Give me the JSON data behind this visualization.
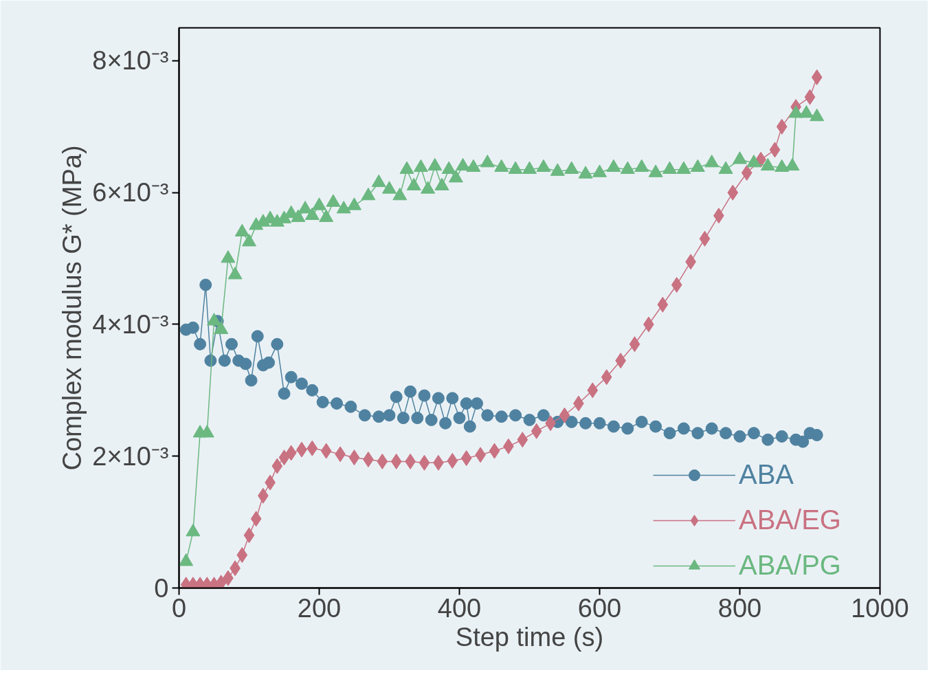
{
  "chart_data": {
    "type": "line",
    "xlabel": "Step time (s)",
    "ylabel": "Complex modulus G* (MPa)",
    "xlim": [
      0,
      1000
    ],
    "xticks": [
      0,
      200,
      400,
      600,
      800,
      1000
    ],
    "ylim": [
      0,
      0.0085
    ],
    "yticks": [
      0,
      {
        "value": 0.002,
        "label": "2×10⁻³"
      },
      {
        "value": 0.004,
        "label": "4×10⁻³"
      },
      {
        "value": 0.006,
        "label": "6×10⁻³"
      },
      {
        "value": 0.008,
        "label": "8×10⁻³"
      }
    ],
    "grid": false,
    "legend": "bottom right",
    "line_style": "solid",
    "series": [
      {
        "name": "ABA",
        "color": "#4f82a0",
        "marker": "circle",
        "x": [
          10,
          20,
          30,
          38,
          45,
          55,
          65,
          75,
          85,
          95,
          103,
          112,
          120,
          128,
          140,
          150,
          160,
          175,
          190,
          205,
          225,
          245,
          265,
          285,
          300,
          310,
          320,
          330,
          340,
          350,
          360,
          370,
          380,
          390,
          400,
          410,
          415,
          425,
          440,
          460,
          480,
          500,
          520,
          540,
          560,
          580,
          600,
          620,
          640,
          660,
          680,
          700,
          720,
          740,
          760,
          780,
          800,
          820,
          840,
          860,
          880,
          890,
          900,
          910
        ],
        "values": [
          0.00392,
          0.00395,
          0.0037,
          0.0046,
          0.00345,
          0.00405,
          0.00345,
          0.0037,
          0.00345,
          0.0034,
          0.00315,
          0.00382,
          0.00338,
          0.00342,
          0.0037,
          0.00295,
          0.0032,
          0.0031,
          0.003,
          0.00282,
          0.0028,
          0.00275,
          0.00262,
          0.0026,
          0.00262,
          0.0029,
          0.00258,
          0.00298,
          0.00258,
          0.00292,
          0.00255,
          0.00288,
          0.0025,
          0.00288,
          0.00258,
          0.0028,
          0.00245,
          0.0028,
          0.00262,
          0.0026,
          0.00262,
          0.00255,
          0.00262,
          0.00252,
          0.00252,
          0.0025,
          0.0025,
          0.00245,
          0.00242,
          0.00252,
          0.00245,
          0.00235,
          0.00242,
          0.00235,
          0.00242,
          0.00235,
          0.0023,
          0.00235,
          0.00225,
          0.0023,
          0.00225,
          0.00222,
          0.00235,
          0.00232
        ]
      },
      {
        "name": "ABA/EG",
        "color": "#c97282",
        "marker": "diamond",
        "x": [
          10,
          20,
          30,
          40,
          50,
          60,
          70,
          80,
          90,
          100,
          110,
          120,
          130,
          140,
          150,
          160,
          175,
          190,
          210,
          230,
          250,
          270,
          290,
          310,
          330,
          350,
          370,
          390,
          410,
          430,
          450,
          470,
          490,
          510,
          530,
          550,
          570,
          590,
          610,
          630,
          650,
          670,
          690,
          710,
          730,
          750,
          770,
          790,
          810,
          830,
          850,
          860,
          880,
          900,
          910
        ],
        "values": [
          5e-05,
          5e-05,
          5e-05,
          5e-05,
          5e-05,
          8e-05,
          0.00015,
          0.0003,
          0.0005,
          0.0008,
          0.00105,
          0.0014,
          0.0016,
          0.00185,
          0.00198,
          0.00205,
          0.0021,
          0.00212,
          0.00208,
          0.00203,
          0.00198,
          0.00195,
          0.00192,
          0.00192,
          0.00192,
          0.0019,
          0.0019,
          0.00193,
          0.00197,
          0.00202,
          0.00208,
          0.00215,
          0.00225,
          0.00238,
          0.0025,
          0.00262,
          0.0028,
          0.003,
          0.0032,
          0.00345,
          0.0037,
          0.004,
          0.0043,
          0.0046,
          0.00495,
          0.0053,
          0.00565,
          0.006,
          0.0063,
          0.0065,
          0.00665,
          0.007,
          0.0073,
          0.00745,
          0.00775
        ]
      },
      {
        "name": "ABA/PG",
        "color": "#6bb880",
        "marker": "triangle",
        "x": [
          10,
          20,
          30,
          40,
          50,
          60,
          70,
          80,
          90,
          100,
          110,
          120,
          130,
          140,
          150,
          160,
          170,
          180,
          190,
          200,
          210,
          220,
          235,
          250,
          270,
          285,
          300,
          315,
          325,
          335,
          345,
          355,
          365,
          375,
          385,
          395,
          405,
          420,
          440,
          460,
          480,
          500,
          520,
          540,
          560,
          580,
          600,
          620,
          640,
          660,
          680,
          700,
          720,
          740,
          760,
          780,
          800,
          820,
          840,
          860,
          875,
          880,
          895,
          910
        ],
        "values": [
          0.0004,
          0.00085,
          0.00235,
          0.00235,
          0.00405,
          0.00392,
          0.005,
          0.00475,
          0.0054,
          0.00525,
          0.0055,
          0.00555,
          0.0056,
          0.00555,
          0.0056,
          0.00568,
          0.00562,
          0.00575,
          0.00565,
          0.0058,
          0.00562,
          0.00585,
          0.00575,
          0.0058,
          0.00595,
          0.00615,
          0.00605,
          0.00595,
          0.00635,
          0.0061,
          0.00638,
          0.00605,
          0.0064,
          0.0061,
          0.00635,
          0.00622,
          0.0064,
          0.00638,
          0.00645,
          0.00638,
          0.00635,
          0.00635,
          0.00638,
          0.00632,
          0.00635,
          0.00628,
          0.0063,
          0.00638,
          0.00635,
          0.00638,
          0.0063,
          0.00635,
          0.00635,
          0.00638,
          0.00645,
          0.00635,
          0.0065,
          0.00645,
          0.0064,
          0.00638,
          0.0064,
          0.0072,
          0.0072,
          0.00715
        ]
      }
    ]
  }
}
